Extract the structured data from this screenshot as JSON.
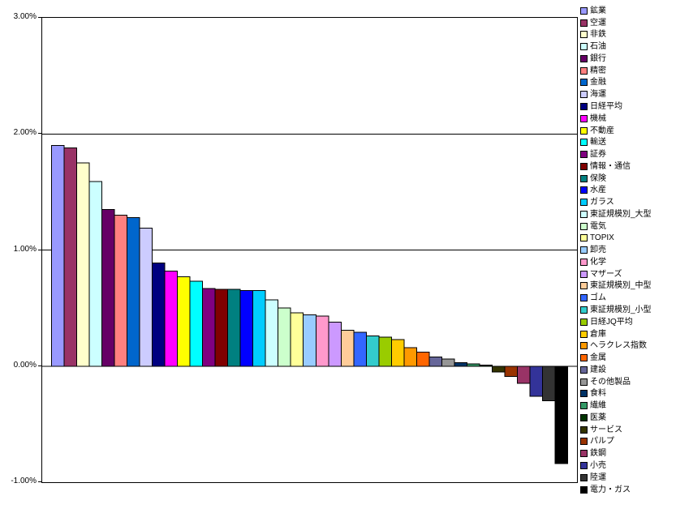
{
  "chart_data": {
    "type": "bar",
    "title": "",
    "xlabel": "",
    "ylabel": "",
    "unit": "%",
    "ylim": [
      -1.0,
      3.0
    ],
    "grid": true,
    "legend_position": "right",
    "background_color": "#FFFFFF",
    "axis_color": "#000000",
    "bar_border_color": "#000000",
    "y_ticks": [
      {
        "label": "3.00%",
        "value": 3
      },
      {
        "label": "2.00%",
        "value": 2
      },
      {
        "label": "1.00%",
        "value": 1
      },
      {
        "label": "0.00%",
        "value": 0
      },
      {
        "label": "-1.00%",
        "value": -1
      }
    ],
    "categories": [
      "鉱業",
      "空運",
      "非鉄",
      "石油",
      "銀行",
      "精密",
      "金融",
      "海運",
      "日経平均",
      "機械",
      "不動産",
      "輸送",
      "証券",
      "情報・通信",
      "保険",
      "水産",
      "ガラス",
      "東証規模別_大型",
      "電気",
      "TOPIX",
      "卸売",
      "化学",
      "マザーズ",
      "東証規模別_中型",
      "ゴム",
      "東証規模別_小型",
      "日経JQ平均",
      "倉庫",
      "ヘラクレス指数",
      "金属",
      "建設",
      "その他製品",
      "食料",
      "繊維",
      "医薬",
      "サービス",
      "パルプ",
      "鉄鋼",
      "小売",
      "陸運",
      "電力・ガス"
    ],
    "values": [
      1.9,
      1.88,
      1.75,
      1.59,
      1.35,
      1.3,
      1.28,
      1.19,
      0.89,
      0.82,
      0.77,
      0.73,
      0.67,
      0.66,
      0.66,
      0.65,
      0.65,
      0.57,
      0.5,
      0.46,
      0.44,
      0.43,
      0.38,
      0.31,
      0.29,
      0.26,
      0.25,
      0.23,
      0.16,
      0.12,
      0.08,
      0.06,
      0.03,
      0.02,
      0.01,
      -0.05,
      -0.09,
      -0.15,
      -0.26,
      -0.3,
      -0.84
    ],
    "colors": [
      "#9999FF",
      "#993366",
      "#FFFFCC",
      "#CCFFFF",
      "#660066",
      "#FF8080",
      "#0066CC",
      "#CCCCFF",
      "#000080",
      "#FF00FF",
      "#FFFF00",
      "#00FFFF",
      "#800080",
      "#800000",
      "#008080",
      "#0000FF",
      "#00CCFF",
      "#CCFFFF",
      "#CCFFCC",
      "#FFFF99",
      "#99CCFF",
      "#FF99CC",
      "#CC99FF",
      "#FFCC99",
      "#3366FF",
      "#33CCCC",
      "#99CC00",
      "#FFCC00",
      "#FF9900",
      "#FF6600",
      "#666699",
      "#969696",
      "#003366",
      "#339966",
      "#003300",
      "#333300",
      "#993300",
      "#993366",
      "#333399",
      "#333333",
      "#000000"
    ]
  }
}
